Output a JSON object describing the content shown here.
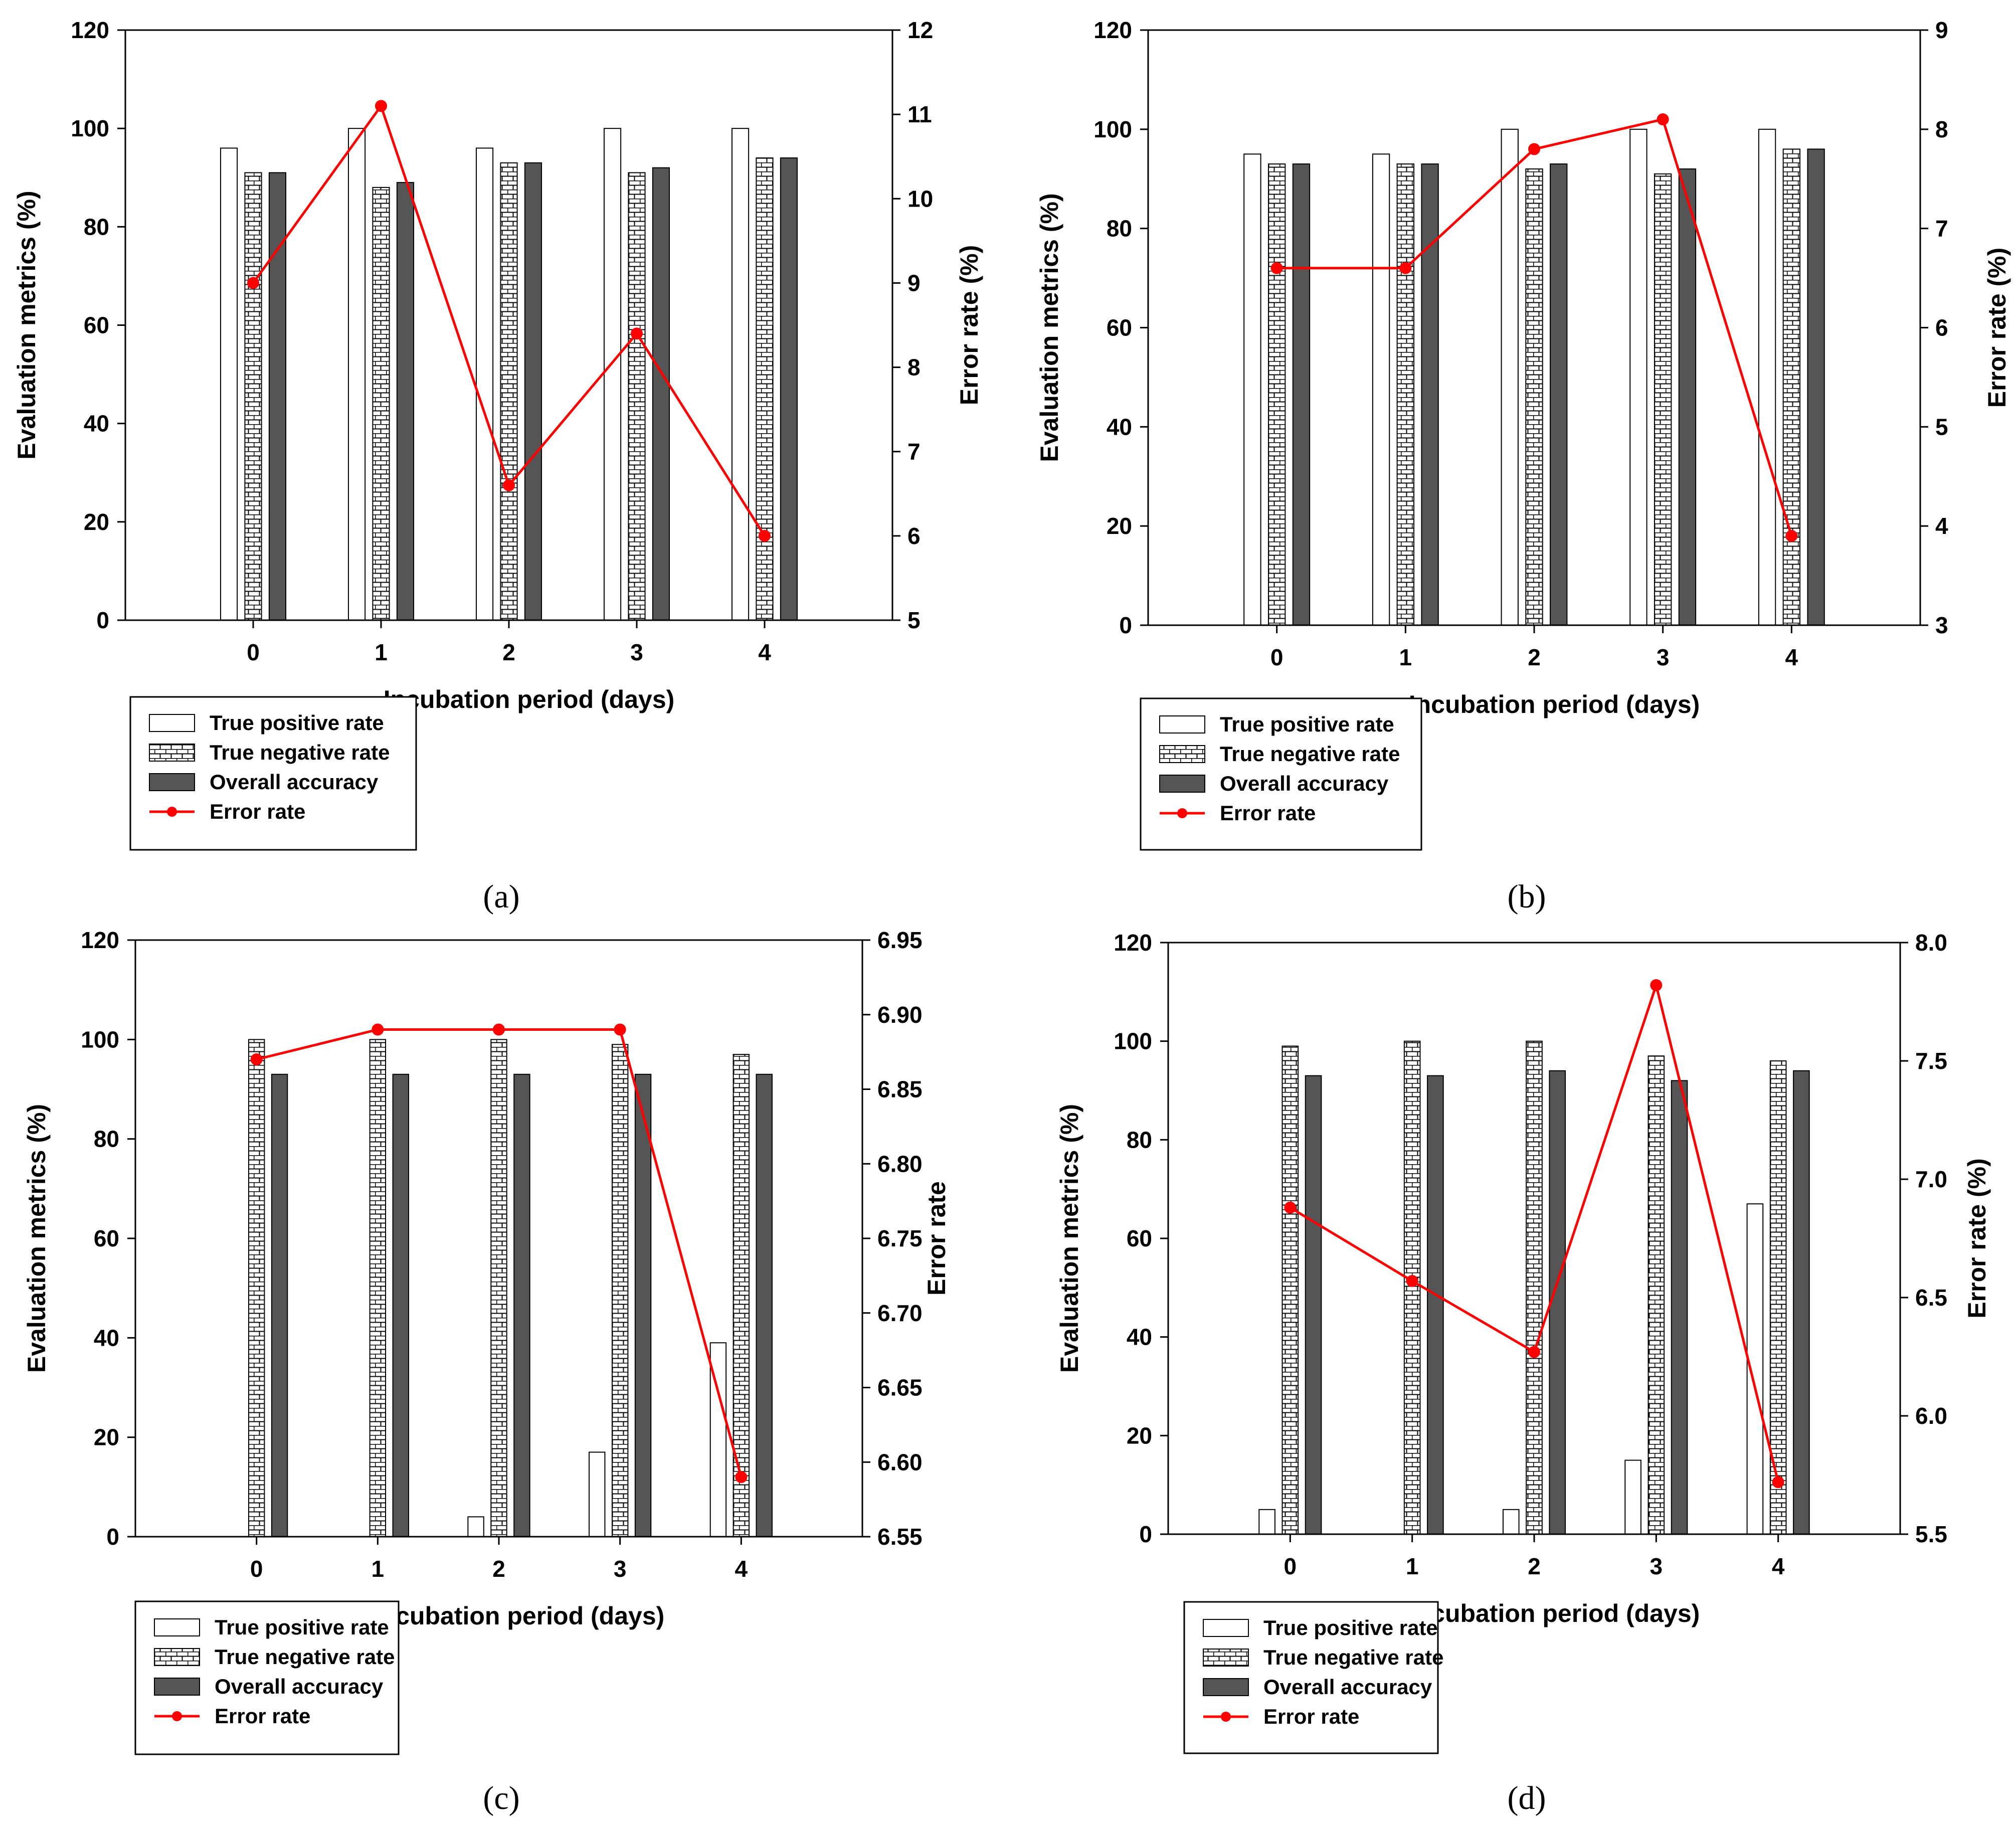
{
  "colors": {
    "error_line": "#ff0000",
    "accuracy_fill": "#555555",
    "tpr_fill": "#ffffff",
    "tnr_pattern": "brick-hatch",
    "axis": "#000000"
  },
  "chart_data": [
    {
      "type": "bar",
      "panel_label": "(a)",
      "categories": [
        "0",
        "1",
        "2",
        "3",
        "4"
      ],
      "xlabel": "Incubation period (days)",
      "ylabel": "Evaluation metrics (%)",
      "ylim": [
        0,
        120
      ],
      "yticks": [
        "0",
        "20",
        "40",
        "60",
        "80",
        "100",
        "120"
      ],
      "y2label": "Error rate (%)",
      "y2lim": [
        5,
        12
      ],
      "y2ticks": [
        "5",
        "6",
        "7",
        "8",
        "9",
        "10",
        "11",
        "12"
      ],
      "grid": false,
      "legend_position": "bottom-left",
      "series": [
        {
          "name": "True positive rate",
          "values": [
            96,
            100,
            96,
            100,
            100
          ]
        },
        {
          "name": "True negative rate",
          "values": [
            91,
            88,
            93,
            91,
            94
          ]
        },
        {
          "name": "Overall accuracy",
          "values": [
            91,
            89,
            93,
            92,
            94
          ]
        },
        {
          "name": "Error rate",
          "axis": "right",
          "values": [
            9.0,
            11.1,
            6.6,
            8.4,
            6.0
          ]
        }
      ]
    },
    {
      "type": "bar",
      "panel_label": "(b)",
      "categories": [
        "0",
        "1",
        "2",
        "3",
        "4"
      ],
      "xlabel": "Incubation period (days)",
      "ylabel": "Evaluation metrics (%)",
      "ylim": [
        0,
        120
      ],
      "yticks": [
        "0",
        "20",
        "40",
        "60",
        "80",
        "100",
        "120"
      ],
      "y2label": "Error rate (%)",
      "y2lim": [
        3,
        9
      ],
      "y2ticks": [
        "3",
        "4",
        "5",
        "6",
        "7",
        "8",
        "9"
      ],
      "grid": false,
      "legend_position": "bottom-left",
      "series": [
        {
          "name": "True positive rate",
          "values": [
            95,
            95,
            100,
            100,
            100
          ]
        },
        {
          "name": "True negative rate",
          "values": [
            93,
            93,
            92,
            91,
            96
          ]
        },
        {
          "name": "Overall accuracy",
          "values": [
            93,
            93,
            93,
            92,
            96
          ]
        },
        {
          "name": "Error rate",
          "axis": "right",
          "values": [
            6.6,
            6.6,
            7.8,
            8.1,
            3.9
          ]
        }
      ]
    },
    {
      "type": "bar",
      "panel_label": "(c)",
      "categories": [
        "0",
        "1",
        "2",
        "3",
        "4"
      ],
      "xlabel": "Incubation period (days)",
      "ylabel": "Evaluation metrics (%)",
      "ylim": [
        0,
        120
      ],
      "yticks": [
        "0",
        "20",
        "40",
        "60",
        "80",
        "100",
        "120"
      ],
      "y2label": "Error rate",
      "y2lim": [
        6.55,
        6.95
      ],
      "y2ticks": [
        "6.55",
        "6.60",
        "6.65",
        "6.70",
        "6.75",
        "6.80",
        "6.85",
        "6.90",
        "6.95"
      ],
      "grid": false,
      "legend_position": "bottom-left",
      "series": [
        {
          "name": "True positive rate",
          "values": [
            0,
            0,
            4,
            17,
            39
          ]
        },
        {
          "name": "True negative rate",
          "values": [
            100,
            100,
            100,
            99,
            97
          ]
        },
        {
          "name": "Overall accuracy",
          "values": [
            93,
            93,
            93,
            93,
            93
          ]
        },
        {
          "name": "Error rate",
          "axis": "right",
          "values": [
            6.87,
            6.89,
            6.89,
            6.89,
            6.59
          ]
        }
      ]
    },
    {
      "type": "bar",
      "panel_label": "(d)",
      "categories": [
        "0",
        "1",
        "2",
        "3",
        "4"
      ],
      "xlabel": "Incubation period (days)",
      "ylabel": "Evaluation metrics (%)",
      "ylim": [
        0,
        120
      ],
      "yticks": [
        "0",
        "20",
        "40",
        "60",
        "80",
        "100",
        "120"
      ],
      "y2label": "Error rate (%)",
      "y2lim": [
        5.5,
        8.0
      ],
      "y2ticks": [
        "5.5",
        "6.0",
        "6.5",
        "7.0",
        "7.5",
        "8.0"
      ],
      "grid": false,
      "legend_position": "bottom-left",
      "series": [
        {
          "name": "True positive rate",
          "values": [
            5,
            0,
            5,
            15,
            67
          ]
        },
        {
          "name": "True negative rate",
          "values": [
            99,
            100,
            100,
            97,
            96
          ]
        },
        {
          "name": "Overall accuracy",
          "values": [
            93,
            93,
            94,
            92,
            94
          ]
        },
        {
          "name": "Error rate",
          "axis": "right",
          "values": [
            6.88,
            6.57,
            6.27,
            7.82,
            5.72
          ]
        }
      ]
    }
  ]
}
